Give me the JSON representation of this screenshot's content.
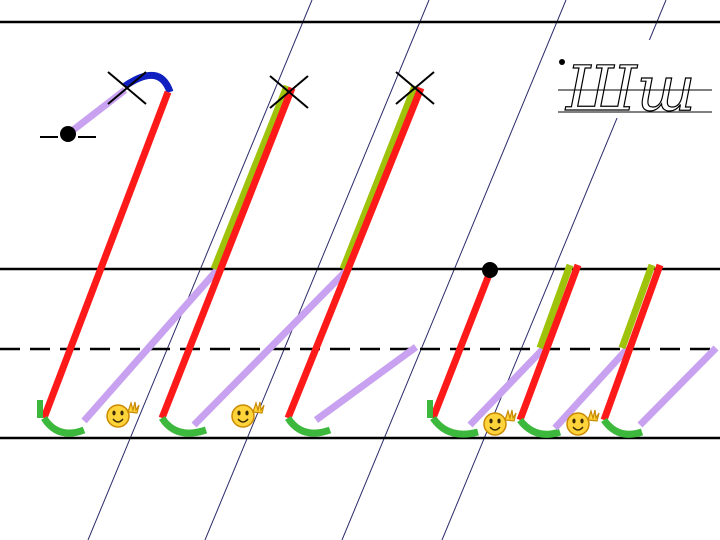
{
  "slide": {
    "theme": "cursive-letter-writing-guide",
    "sample_text": "Шш"
  },
  "colors": {
    "background": "#ffffff",
    "ruling": "#000000",
    "slant_guide": "#2b2b6b",
    "main_stroke": "#ff1a1a",
    "retrace_stroke": "#9fc20a",
    "connector_stroke": "#c8a2f0",
    "base_curve": "#3cb83c",
    "top_hook": "#1020c0",
    "start_dot": "#000000",
    "cross_mark": "#000000",
    "smiley_face": "#ffd43a",
    "smiley_outline": "#c98a00"
  },
  "icons": {
    "start_point": "start-dot-icon",
    "retrace_mark": "cross-mark-icon",
    "praise": "waving-smiley-icon"
  },
  "guide_lines": [
    "top-line",
    "waist-line",
    "mid-dashed-line",
    "base-line"
  ]
}
